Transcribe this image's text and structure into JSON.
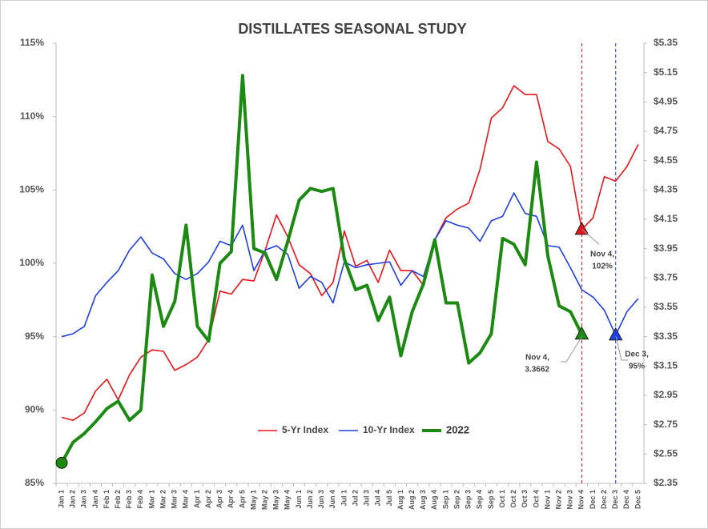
{
  "chart_data": {
    "type": "line",
    "title": "DISTILLATES SEASONAL STUDY",
    "categories": [
      "Jan 1",
      "Jan 2",
      "Jan 3",
      "Jan 4",
      "Feb 1",
      "Feb 2",
      "Feb 3",
      "Feb 4",
      "Mar 1",
      "Mar 2",
      "Mar 3",
      "Mar 4",
      "Apr 1",
      "Apr 2",
      "Apr 3",
      "Apr 4",
      "Apr 5",
      "May 1",
      "May 2",
      "May 3",
      "May 4",
      "Jun 1",
      "Jun 2",
      "Jun 3",
      "Jun 4",
      "Jul 1",
      "Jul 2",
      "Jul 3",
      "Jul 4",
      "Jul 5",
      "Aug 1",
      "Aug 2",
      "Aug 3",
      "Aug 4",
      "Sep 1",
      "Sep 2",
      "Sep 3",
      "Sep 4",
      "Sep 5",
      "Oct 1",
      "Oct 2",
      "Oct 3",
      "Oct 4",
      "Nov 1",
      "Nov 2",
      "Nov 3",
      "Nov 4",
      "Dec 1",
      "Dec 2",
      "Dec 3",
      "Dec 4",
      "Dec 5"
    ],
    "series": [
      {
        "name": "5-Yr Index",
        "color": "#e8141b",
        "values": [
          89.5,
          89.3,
          89.8,
          91.3,
          92.1,
          90.7,
          92.4,
          93.6,
          94.1,
          94.0,
          92.7,
          93.1,
          93.6,
          94.8,
          98.1,
          97.9,
          98.9,
          98.8,
          100.9,
          103.3,
          101.8,
          99.9,
          99.3,
          97.8,
          98.7,
          102.2,
          99.8,
          100.2,
          98.7,
          100.9,
          99.5,
          99.5,
          98.5,
          101.6,
          103.1,
          103.7,
          104.1,
          106.4,
          109.9,
          110.6,
          112.1,
          111.5,
          111.5,
          108.3,
          107.8,
          106.6,
          102.3,
          103.1,
          105.9,
          105.6,
          106.6,
          108.1
        ]
      },
      {
        "name": "10-Yr Index",
        "color": "#1f3fe0",
        "values": [
          95.0,
          95.2,
          95.7,
          97.8,
          98.7,
          99.5,
          100.9,
          101.8,
          100.7,
          100.3,
          99.3,
          98.9,
          99.3,
          100.1,
          101.5,
          101.2,
          102.6,
          99.5,
          100.9,
          101.2,
          100.6,
          98.3,
          99.1,
          98.7,
          97.3,
          100.1,
          99.7,
          99.9,
          100.0,
          100.1,
          98.5,
          99.5,
          99.1,
          101.6,
          102.9,
          102.6,
          102.4,
          101.5,
          102.9,
          103.2,
          104.8,
          103.4,
          103.2,
          101.2,
          101.1,
          99.7,
          98.2,
          97.7,
          96.8,
          95.1,
          96.7,
          97.6
        ]
      },
      {
        "name": "2022",
        "color": "#1c8a12",
        "axis": "y2",
        "values": [
          2.49,
          2.63,
          2.69,
          2.77,
          2.86,
          2.91,
          2.78,
          2.85,
          3.77,
          3.42,
          3.59,
          4.11,
          3.42,
          3.32,
          3.85,
          3.93,
          5.13,
          3.95,
          3.92,
          3.74,
          4.0,
          4.28,
          4.36,
          4.34,
          4.36,
          3.88,
          3.67,
          3.7,
          3.46,
          3.62,
          3.22,
          3.52,
          3.71,
          4.01,
          3.58,
          3.58,
          3.17,
          3.24,
          3.37,
          4.02,
          3.98,
          3.84,
          4.54,
          3.9,
          3.56,
          3.52,
          3.3662,
          null,
          null,
          null,
          null,
          null
        ]
      }
    ],
    "ylim": [
      85,
      115
    ],
    "yticks": [
      {
        "value": 85,
        "label": "85%"
      },
      {
        "value": 90,
        "label": "90%"
      },
      {
        "value": 95,
        "label": "95%"
      },
      {
        "value": 100,
        "label": "100%"
      },
      {
        "value": 105,
        "label": "105%"
      },
      {
        "value": 110,
        "label": "110%"
      },
      {
        "value": 115,
        "label": "115%"
      }
    ],
    "y2lim": [
      2.35,
      5.35
    ],
    "y2ticks": [
      {
        "value": 2.35,
        "label": "$2.35"
      },
      {
        "value": 2.55,
        "label": "$2.55"
      },
      {
        "value": 2.75,
        "label": "$2.75"
      },
      {
        "value": 2.95,
        "label": "$2.95"
      },
      {
        "value": 3.15,
        "label": "$3.15"
      },
      {
        "value": 3.35,
        "label": "$3.35"
      },
      {
        "value": 3.55,
        "label": "$3.55"
      },
      {
        "value": 3.75,
        "label": "$3.75"
      },
      {
        "value": 3.95,
        "label": "$3.95"
      },
      {
        "value": 4.15,
        "label": "$4.15"
      },
      {
        "value": 4.35,
        "label": "$4.35"
      },
      {
        "value": 4.55,
        "label": "$4.55"
      },
      {
        "value": 4.75,
        "label": "$4.75"
      },
      {
        "value": 4.95,
        "label": "$4.95"
      },
      {
        "value": 5.15,
        "label": "$5.15"
      },
      {
        "value": 5.35,
        "label": "$5.35"
      }
    ],
    "grid": false,
    "legend": "bottom",
    "annotations": [
      {
        "lines": [
          "Nov 4,",
          "102%"
        ]
      },
      {
        "lines": [
          "Nov 4,",
          "3.3662"
        ]
      },
      {
        "lines": [
          "Dec 3,",
          "95%"
        ]
      }
    ]
  }
}
